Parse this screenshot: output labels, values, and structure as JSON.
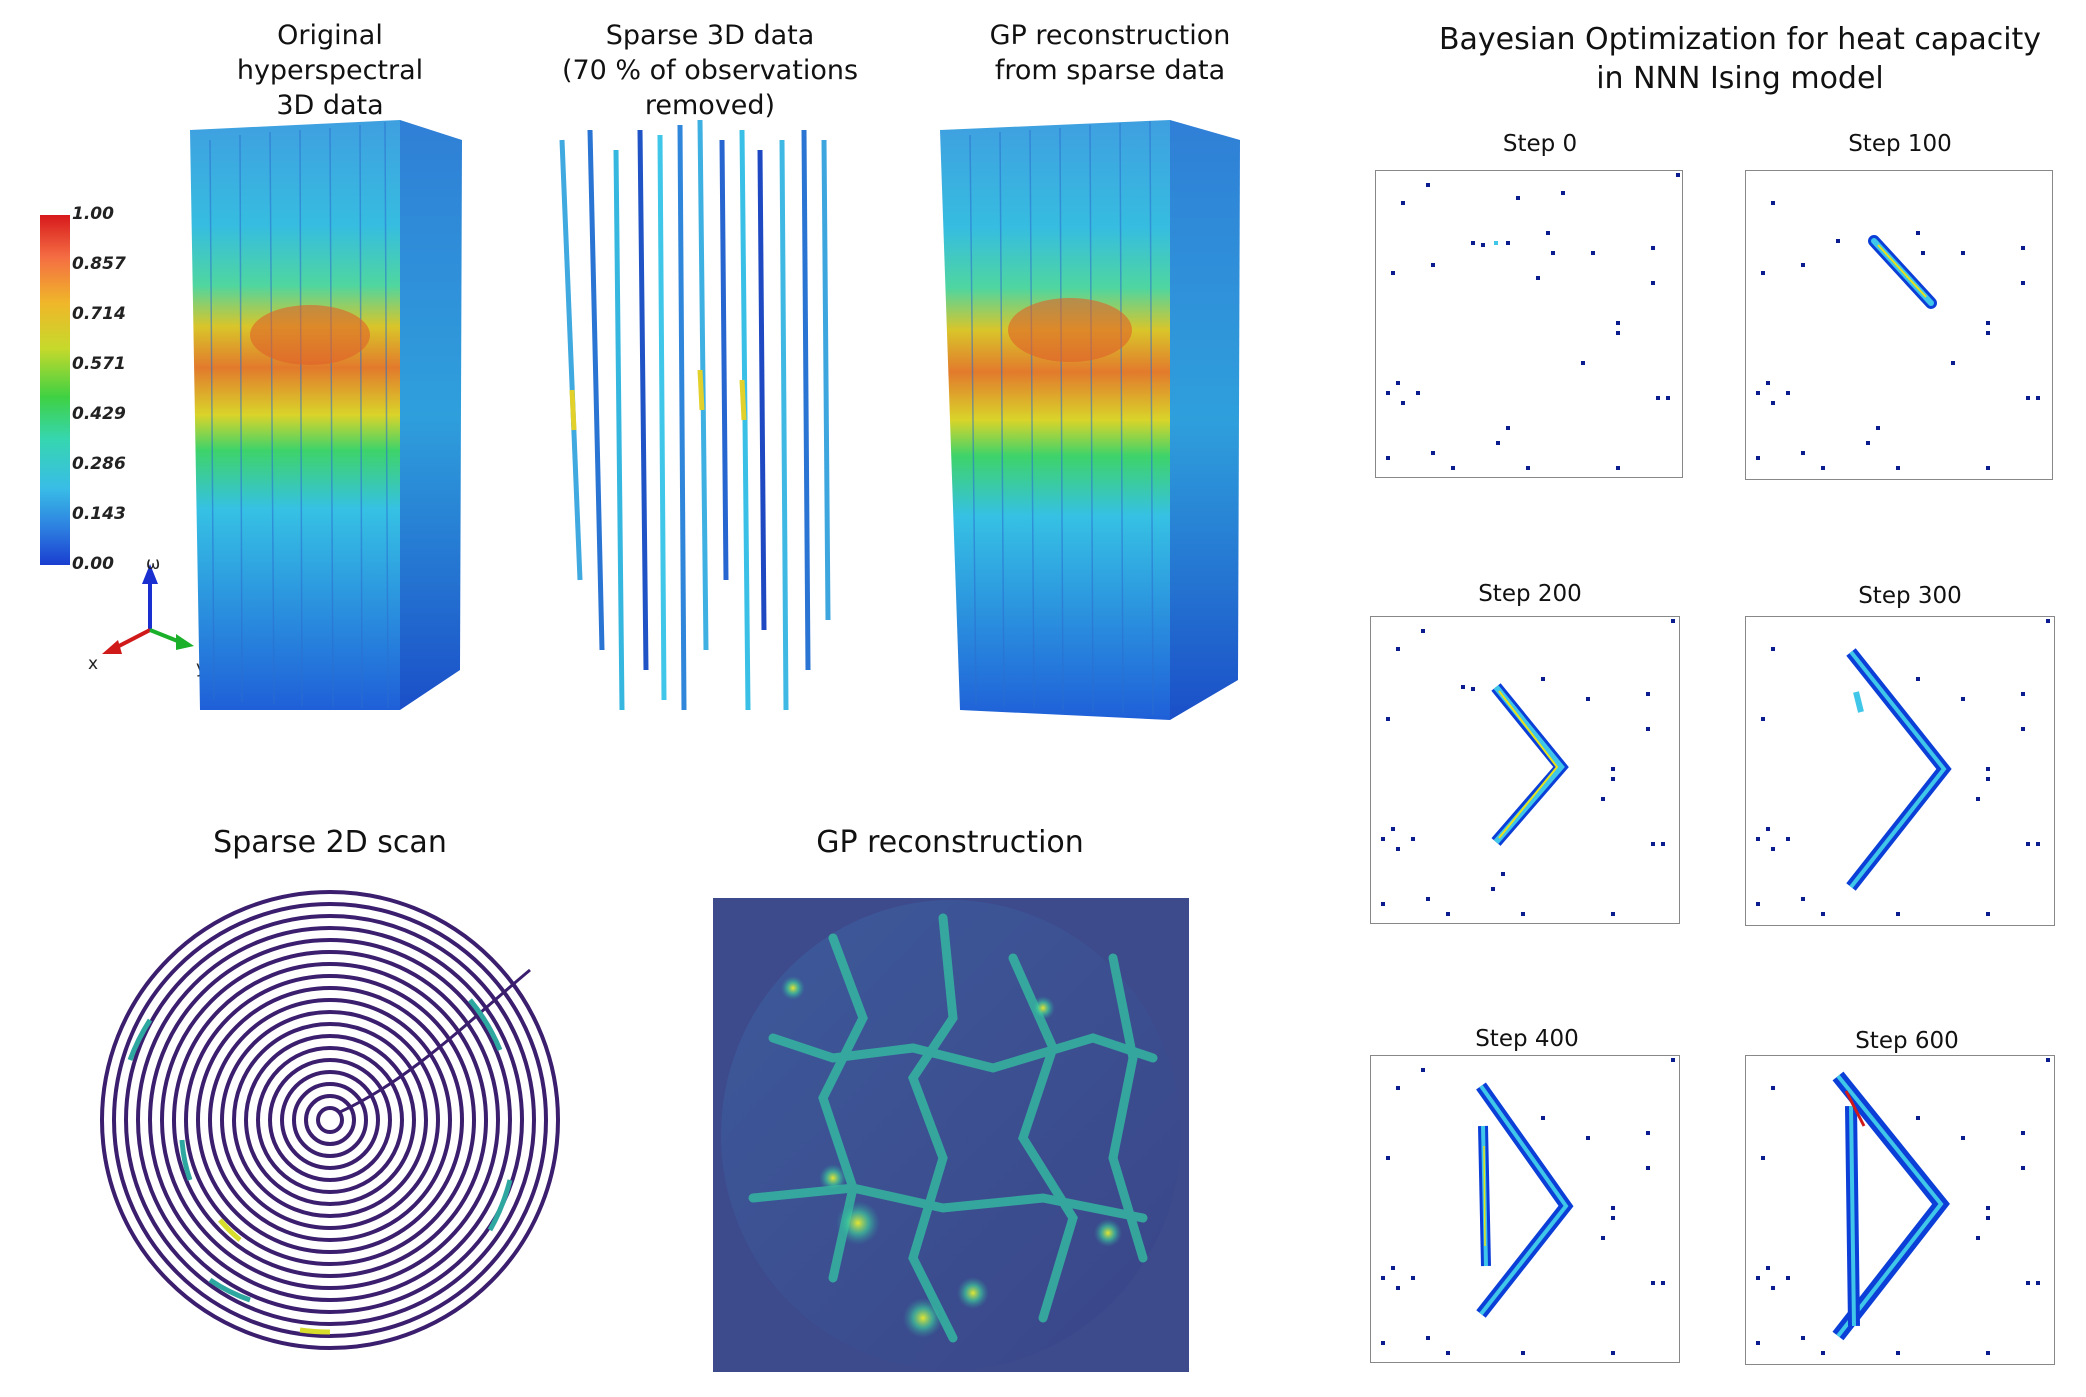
{
  "top_left": {
    "title_original": "Original hyperspectral\n3D data",
    "title_sparse": "Sparse 3D data\n(70 % of observations removed)",
    "title_gp": "GP reconstruction\nfrom sparse data",
    "colorbar": {
      "ticks": [
        "1.00",
        "0.857",
        "0.714",
        "0.571",
        "0.429",
        "0.286",
        "0.143",
        "0.00"
      ]
    },
    "axes": {
      "omega": "ω",
      "x": "x",
      "y": "y"
    }
  },
  "bottom_left": {
    "title_scan": "Sparse 2D scan",
    "title_gp": "GP reconstruction"
  },
  "right": {
    "title": "Bayesian Optimization for heat capacity\nin NNN Ising model",
    "steps": [
      "Step 0",
      "Step 100",
      "Step 200",
      "Step 300",
      "Step 400",
      "Step 600"
    ]
  },
  "colors": {
    "dark_blue": "#0b1d8e",
    "cyan": "#3fc6e8",
    "yellow": "#e8e21a",
    "spiral": "#3b1e6e",
    "gp_bg": "#3d4a8c"
  }
}
